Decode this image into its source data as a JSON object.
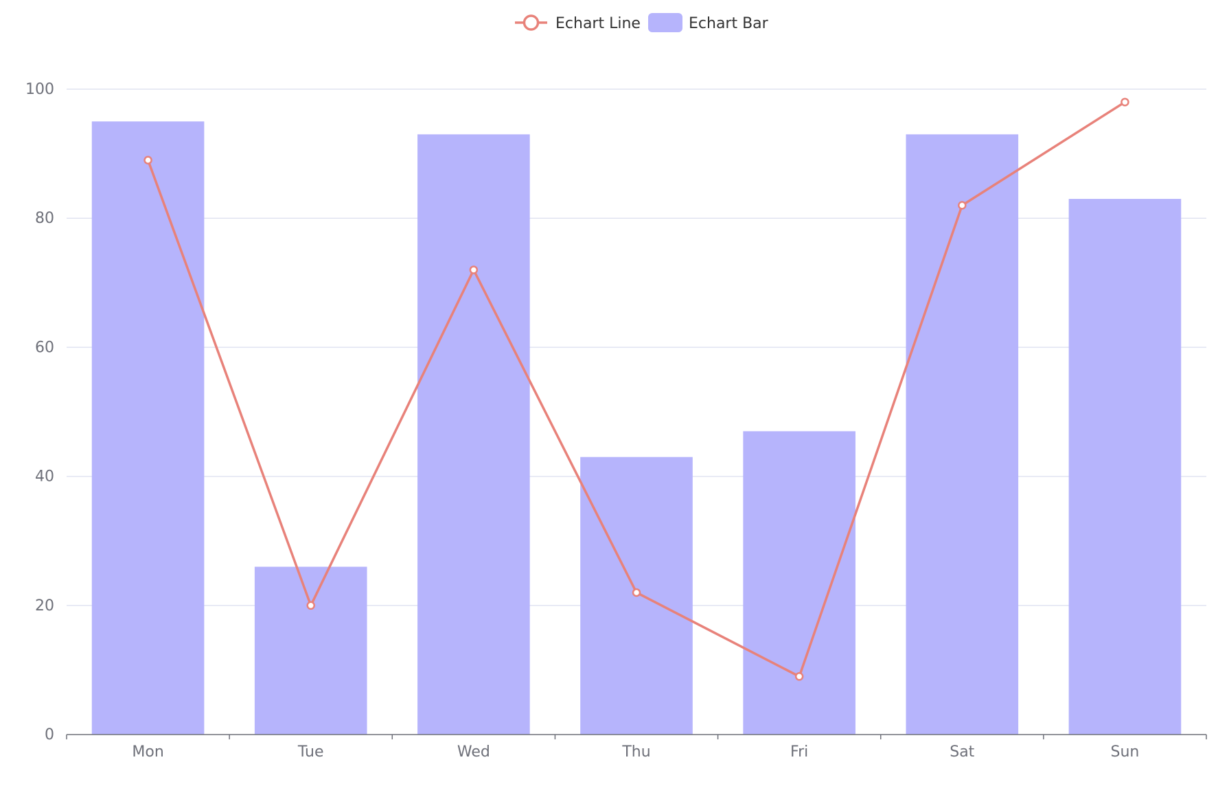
{
  "chart_data": {
    "type": "bar",
    "categories": [
      "Mon",
      "Tue",
      "Wed",
      "Thu",
      "Fri",
      "Sat",
      "Sun"
    ],
    "series": [
      {
        "name": "Echart Line",
        "type": "line",
        "color": "#E8827A",
        "values": [
          89,
          20,
          72,
          22,
          9,
          82,
          98
        ]
      },
      {
        "name": "Echart Bar",
        "type": "bar",
        "color": "#B6B4FC",
        "values": [
          95,
          26,
          93,
          43,
          47,
          93,
          83
        ]
      }
    ],
    "title": "",
    "xlabel": "",
    "ylabel": "",
    "ylim": [
      0,
      100
    ],
    "yticks": [
      "0",
      "20",
      "40",
      "60",
      "80",
      "100"
    ],
    "grid": true,
    "legend_position": "top-center"
  }
}
